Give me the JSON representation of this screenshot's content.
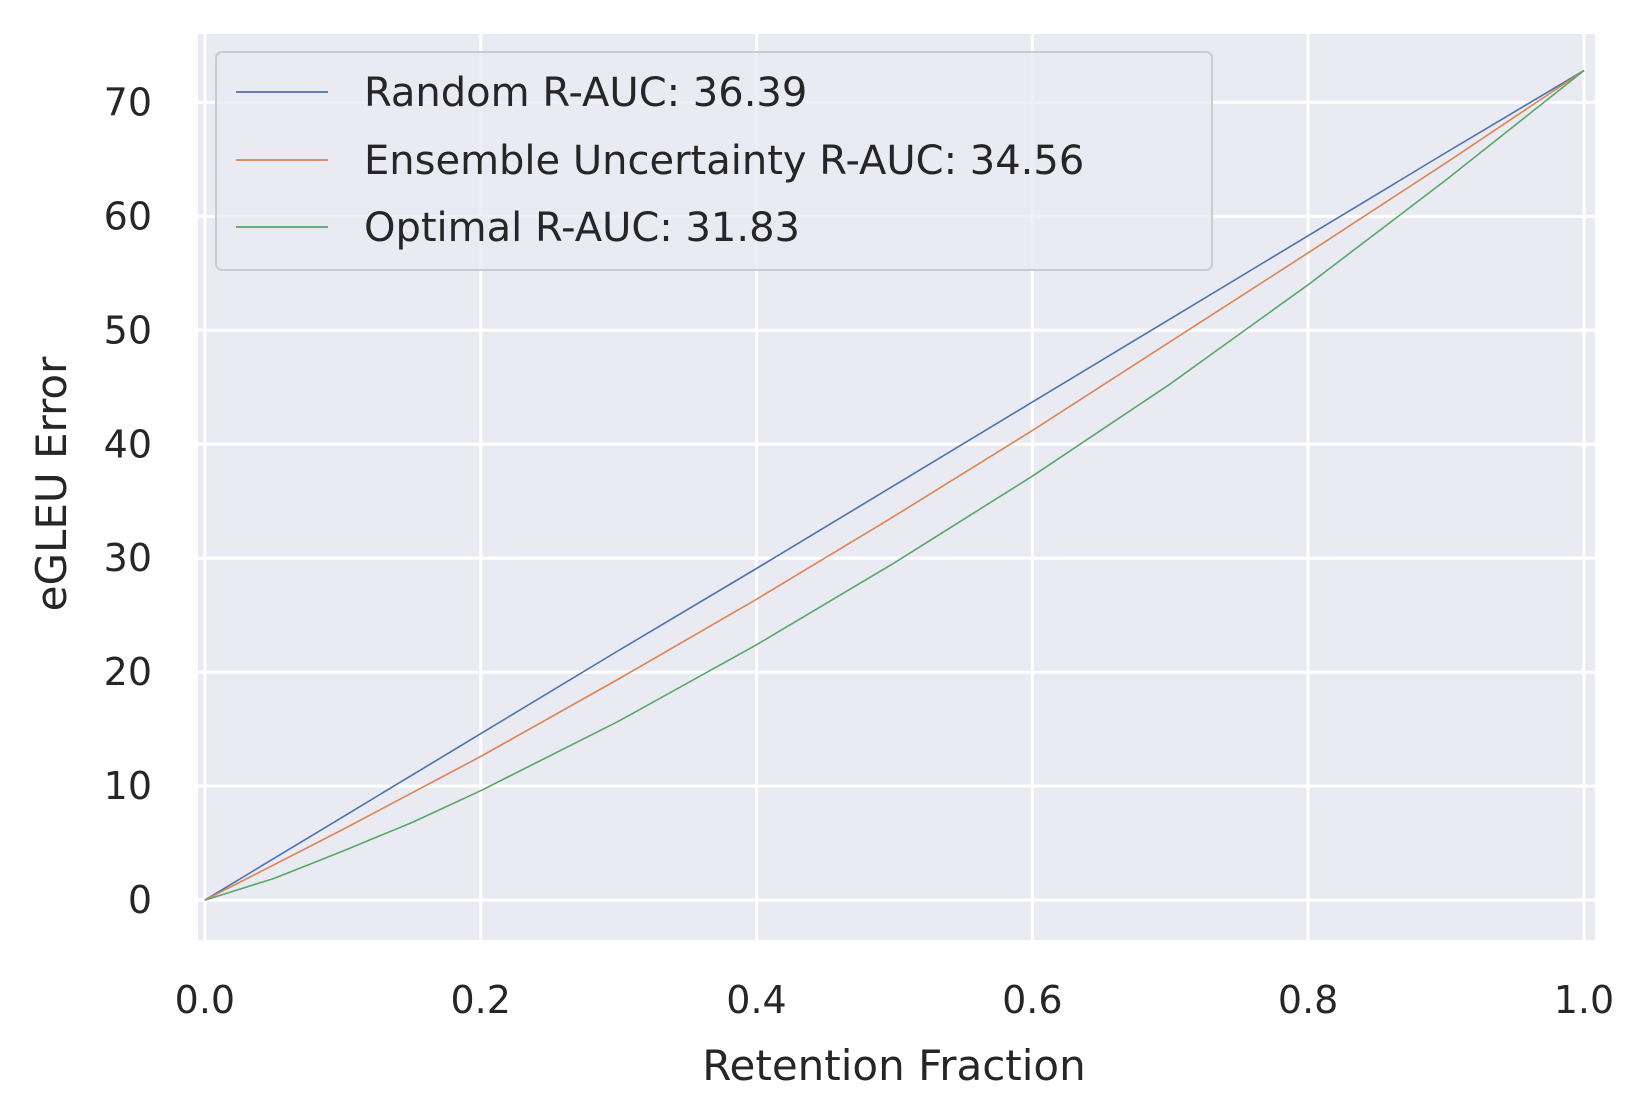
{
  "chart_data": {
    "type": "line",
    "title": "",
    "xlabel": "Retention Fraction",
    "ylabel": "eGLEU Error",
    "xlim": [
      -0.005,
      1.008
    ],
    "ylim": [
      -3.5,
      76
    ],
    "xticks": [
      0.0,
      0.2,
      0.4,
      0.6,
      0.8,
      1.0
    ],
    "xtick_labels": [
      "0.0",
      "0.2",
      "0.4",
      "0.6",
      "0.8",
      "1.0"
    ],
    "yticks": [
      0,
      10,
      20,
      30,
      40,
      50,
      60,
      70
    ],
    "ytick_labels": [
      "0",
      "10",
      "20",
      "30",
      "40",
      "50",
      "60",
      "70"
    ],
    "grid": true,
    "background": "#eaeaf2",
    "legend_position": "top-left",
    "series": [
      {
        "name": "Random R-AUC: 36.39",
        "color": "#4c72b0",
        "x": [
          0.0,
          0.1,
          0.2,
          0.3,
          0.4,
          0.5,
          0.6,
          0.7,
          0.8,
          0.9,
          1.0
        ],
        "y": [
          0.0,
          7.3,
          14.6,
          21.9,
          29.1,
          36.4,
          43.7,
          51.0,
          58.3,
          65.6,
          72.8
        ]
      },
      {
        "name": "Ensemble Uncertainty R-AUC: 34.56",
        "color": "#dd8452",
        "x": [
          0.0,
          0.1,
          0.2,
          0.3,
          0.4,
          0.5,
          0.6,
          0.7,
          0.8,
          0.9,
          1.0
        ],
        "y": [
          0.0,
          6.2,
          12.6,
          19.4,
          26.4,
          33.7,
          41.2,
          49.0,
          56.8,
          64.7,
          72.8
        ]
      },
      {
        "name": "Optimal R-AUC: 31.83",
        "color": "#55a868",
        "x": [
          0.0,
          0.05,
          0.1,
          0.15,
          0.2,
          0.3,
          0.4,
          0.5,
          0.6,
          0.7,
          0.8,
          0.9,
          1.0
        ],
        "y": [
          0.0,
          1.9,
          4.3,
          6.8,
          9.6,
          15.7,
          22.4,
          29.6,
          37.2,
          45.3,
          54.0,
          63.2,
          72.8
        ]
      }
    ]
  }
}
